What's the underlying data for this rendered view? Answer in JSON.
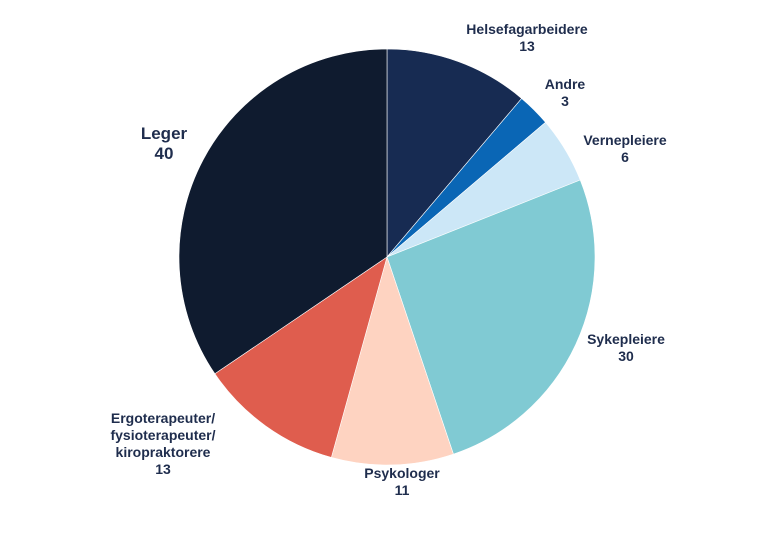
{
  "chart_data": {
    "type": "pie",
    "title": "",
    "slices": [
      {
        "label": "Helsefagarbeidere",
        "value": 13,
        "color": "#172b52"
      },
      {
        "label": "Andre",
        "value": 3,
        "color": "#0a66b5"
      },
      {
        "label": "Vernepleiere",
        "value": 6,
        "color": "#cce7f7"
      },
      {
        "label": "Sykepleiere",
        "value": 30,
        "color": "#80cad3"
      },
      {
        "label": "Psykologer",
        "value": 11,
        "color": "#fed3c1"
      },
      {
        "label": "Ergoterapeuter/ fysioterapeuter/ kiropraktorere",
        "value": 13,
        "color": "#df5d4e"
      },
      {
        "label": "Leger",
        "value": 40,
        "color": "#0f1b2f"
      }
    ]
  }
}
